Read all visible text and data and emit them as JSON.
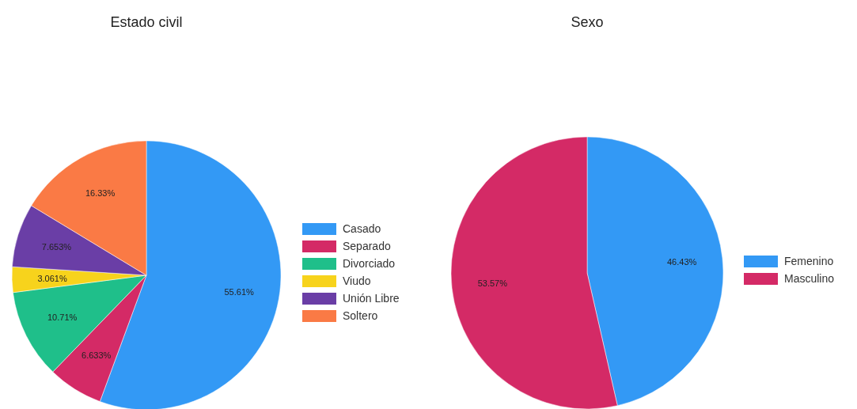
{
  "chart_data": [
    {
      "type": "pie",
      "title": "Estado civil",
      "categories": [
        "Casado",
        "Separado",
        "Divorciado",
        "Viudo",
        "Unión Libre",
        "Soltero"
      ],
      "values": [
        55.61,
        6.633,
        10.71,
        3.061,
        7.653,
        16.33
      ],
      "value_labels": [
        "55.61%",
        "6.633%",
        "10.71%",
        "3.061%",
        "7.653%",
        "16.33%"
      ],
      "colors": [
        "#3399f5",
        "#d42a66",
        "#1fbf8a",
        "#f7d31c",
        "#6a3ea6",
        "#fa7a45"
      ],
      "legend": "right"
    },
    {
      "type": "pie",
      "title": "Sexo",
      "categories": [
        "Femenino",
        "Masculino"
      ],
      "values": [
        46.43,
        53.57
      ],
      "value_labels": [
        "46.43%",
        "53.57%"
      ],
      "colors": [
        "#3399f5",
        "#d42a66"
      ],
      "legend": "right"
    }
  ]
}
